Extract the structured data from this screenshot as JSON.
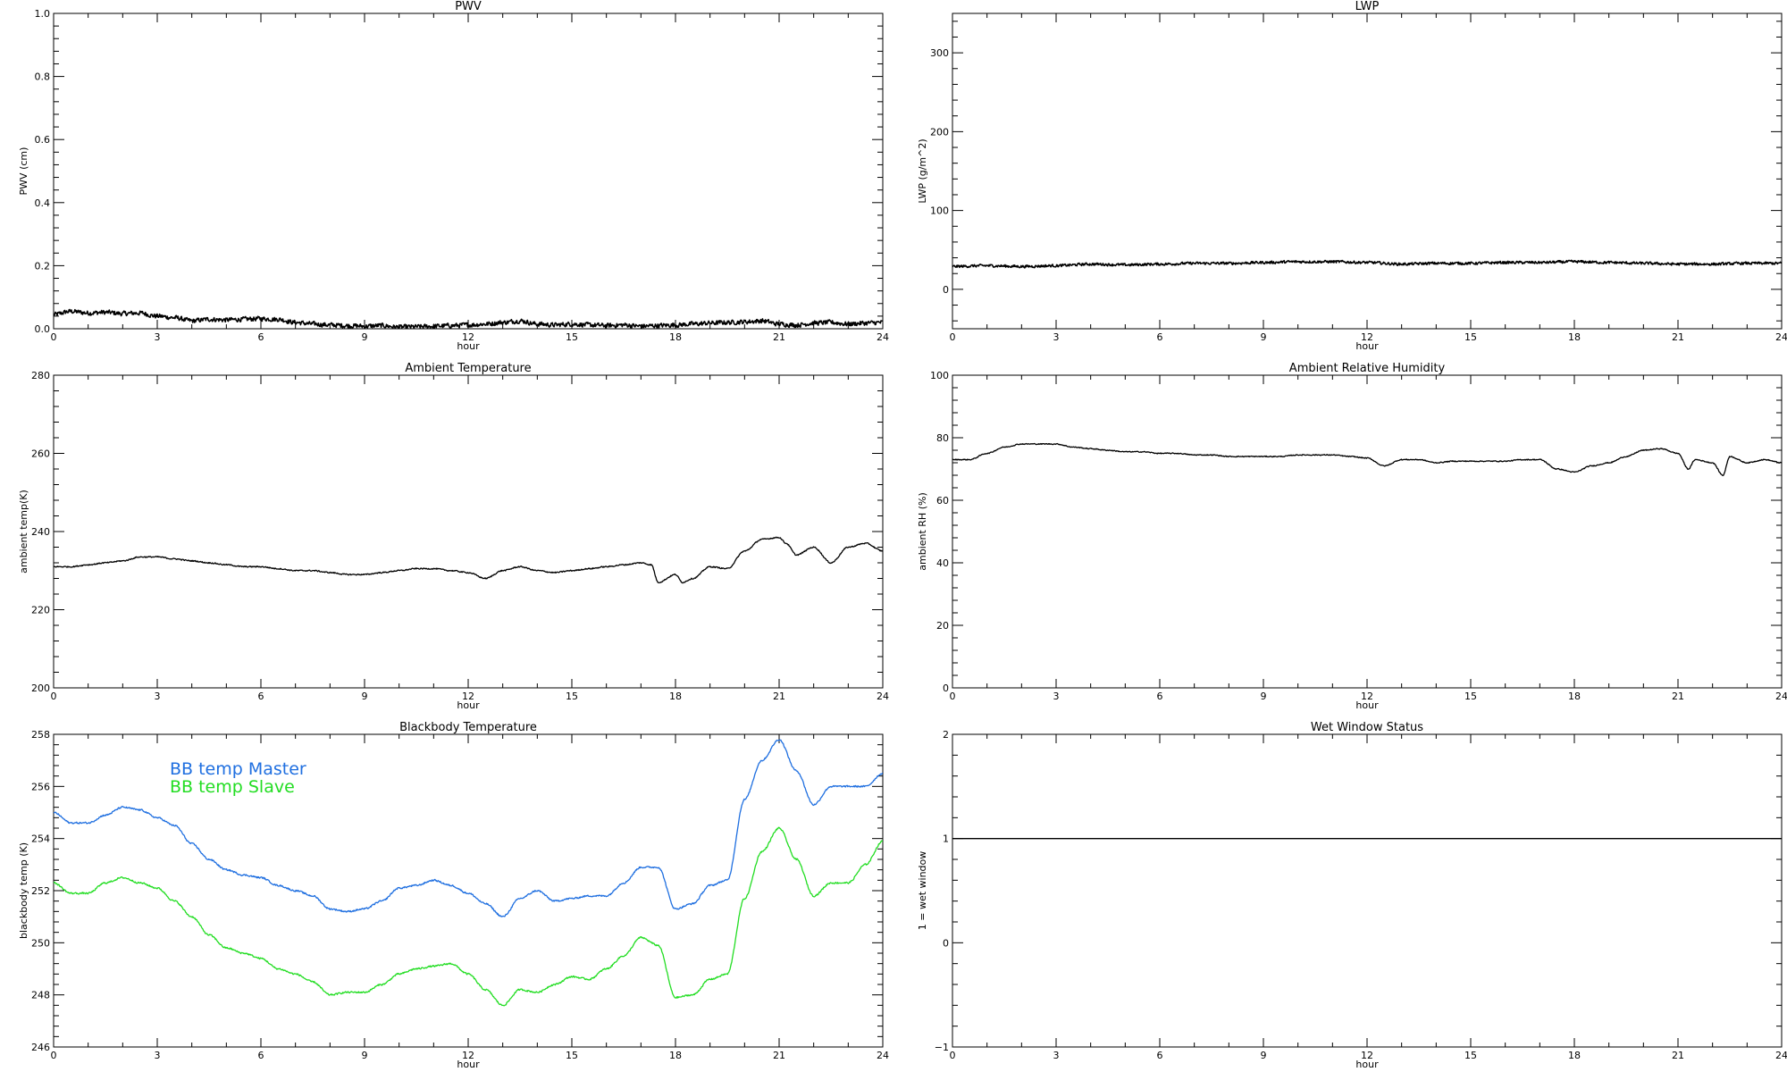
{
  "chart_data": [
    {
      "type": "line",
      "title": "PWV",
      "xlabel": "hour",
      "ylabel": "PWV (cm)",
      "xlim": [
        0,
        24
      ],
      "ylim": [
        0.0,
        1.0
      ],
      "x_ticks": [
        0,
        3,
        6,
        9,
        12,
        15,
        18,
        21,
        24
      ],
      "y_ticks": [
        0.0,
        0.2,
        0.4,
        0.6,
        0.8,
        1.0
      ],
      "y_tick_labels": [
        "0.0",
        "0.2",
        "0.4",
        "0.6",
        "0.8",
        "1.0"
      ],
      "noise": 0.007,
      "series": [
        {
          "color": "#000000",
          "x": [
            0,
            0.5,
            1,
            1.5,
            2,
            2.5,
            3,
            3.5,
            4,
            4.5,
            5,
            5.5,
            6,
            6.5,
            7,
            7.5,
            8,
            8.5,
            9,
            9.5,
            10,
            10.5,
            11,
            11.5,
            12,
            12.5,
            13,
            13.5,
            14,
            14.5,
            15,
            15.5,
            16,
            16.5,
            17,
            17.5,
            18,
            18.5,
            19,
            19.5,
            20,
            20.5,
            21,
            21.5,
            22,
            22.5,
            23,
            23.5,
            24
          ],
          "y": [
            0.045,
            0.055,
            0.05,
            0.052,
            0.048,
            0.05,
            0.04,
            0.035,
            0.025,
            0.03,
            0.028,
            0.03,
            0.032,
            0.03,
            0.02,
            0.015,
            0.012,
            0.01,
            0.008,
            0.01,
            0.005,
            0.006,
            0.008,
            0.01,
            0.012,
            0.015,
            0.02,
            0.025,
            0.015,
            0.012,
            0.015,
            0.012,
            0.01,
            0.012,
            0.008,
            0.01,
            0.012,
            0.015,
            0.018,
            0.02,
            0.022,
            0.025,
            0.015,
            0.012,
            0.018,
            0.02,
            0.015,
            0.018,
            0.02
          ]
        }
      ]
    },
    {
      "type": "line",
      "title": "LWP",
      "xlabel": "hour",
      "ylabel": "LWP (g/m^2)",
      "xlim": [
        0,
        24
      ],
      "ylim": [
        -50,
        350
      ],
      "x_ticks": [
        0,
        3,
        6,
        9,
        12,
        15,
        18,
        21,
        24
      ],
      "y_ticks": [
        0,
        100,
        200,
        300
      ],
      "y_tick_labels": [
        "0",
        "100",
        "200",
        "300"
      ],
      "noise": 1.6,
      "series": [
        {
          "color": "#000000",
          "x": [
            0,
            1,
            2,
            3,
            4,
            5,
            6,
            7,
            8,
            9,
            10,
            11,
            12,
            13,
            14,
            15,
            16,
            17,
            18,
            19,
            20,
            21,
            22,
            23,
            24
          ],
          "y": [
            29,
            30,
            29,
            30,
            32,
            31,
            32,
            33,
            33,
            34,
            35,
            35,
            34,
            32,
            33,
            33,
            34,
            34,
            35,
            34,
            33,
            32,
            32,
            33,
            33
          ]
        }
      ]
    },
    {
      "type": "line",
      "title": "Ambient Temperature",
      "xlabel": "hour",
      "ylabel": "ambient temp(K)",
      "xlim": [
        0,
        24
      ],
      "ylim": [
        200,
        280
      ],
      "x_ticks": [
        0,
        3,
        6,
        9,
        12,
        15,
        18,
        21,
        24
      ],
      "y_ticks": [
        200,
        220,
        240,
        260,
        280
      ],
      "y_tick_labels": [
        "200",
        "220",
        "240",
        "260",
        "280"
      ],
      "noise": 0.15,
      "series": [
        {
          "color": "#000000",
          "x": [
            0,
            0.5,
            1,
            1.5,
            2,
            2.5,
            3,
            3.5,
            4,
            4.5,
            5,
            5.5,
            6,
            6.5,
            7,
            7.5,
            8,
            8.5,
            9,
            9.5,
            10,
            10.5,
            11,
            11.5,
            12,
            12.5,
            13,
            13.5,
            14,
            14.5,
            15,
            15.5,
            16,
            16.5,
            17,
            17.3,
            17.5,
            18,
            18.2,
            18.5,
            19,
            19.5,
            20,
            20.5,
            21,
            21.2,
            21.5,
            22,
            22.5,
            23,
            23.5,
            24
          ],
          "y": [
            231,
            231,
            231.5,
            232,
            232.5,
            233.5,
            233.5,
            233,
            232.5,
            232,
            231.5,
            231,
            231,
            230.5,
            230,
            230,
            229.5,
            229,
            229,
            229.5,
            230,
            230.5,
            230.5,
            230,
            229.5,
            228,
            230,
            231,
            230,
            229.5,
            230,
            230.5,
            231,
            231.5,
            232,
            231.5,
            227,
            229,
            227,
            228,
            231,
            230.5,
            235,
            238,
            238.5,
            237,
            234,
            236,
            232,
            236,
            237,
            235
          ]
        }
      ]
    },
    {
      "type": "line",
      "title": "Ambient Relative Humidity",
      "xlabel": "hour",
      "ylabel": "ambient RH (%)",
      "xlim": [
        0,
        24
      ],
      "ylim": [
        0,
        100
      ],
      "x_ticks": [
        0,
        3,
        6,
        9,
        12,
        15,
        18,
        21,
        24
      ],
      "y_ticks": [
        0,
        20,
        40,
        60,
        80,
        100
      ],
      "y_tick_labels": [
        "0",
        "20",
        "40",
        "60",
        "80",
        "100"
      ],
      "noise": 0.15,
      "series": [
        {
          "color": "#000000",
          "x": [
            0,
            0.5,
            1,
            1.5,
            2,
            2.5,
            3,
            3.5,
            4,
            4.5,
            5,
            5.5,
            6,
            6.5,
            7,
            7.5,
            8,
            8.5,
            9,
            9.5,
            10,
            10.5,
            11,
            11.5,
            12,
            12.5,
            13,
            13.5,
            14,
            14.5,
            15,
            15.5,
            16,
            16.5,
            17,
            17.5,
            18,
            18.5,
            19,
            19.5,
            20,
            20.5,
            21,
            21.3,
            21.5,
            22,
            22.3,
            22.5,
            23,
            23.5,
            24
          ],
          "y": [
            73,
            73,
            75,
            77,
            78,
            78,
            78,
            77,
            76.5,
            76,
            75.5,
            75.5,
            75,
            75,
            74.5,
            74.5,
            74,
            74,
            74,
            74,
            74.5,
            74.5,
            74.5,
            74,
            73.5,
            71,
            73,
            73,
            72,
            72.5,
            72.5,
            72.5,
            72.5,
            73,
            73,
            70,
            69,
            71,
            72,
            74,
            76,
            76.5,
            75,
            70,
            73,
            72,
            68,
            74,
            72,
            73,
            72
          ]
        }
      ]
    },
    {
      "type": "line",
      "title": "Blackbody Temperature",
      "xlabel": "hour",
      "ylabel": "blackbody temp (K)",
      "xlim": [
        0,
        24
      ],
      "ylim": [
        246,
        258
      ],
      "x_ticks": [
        0,
        3,
        6,
        9,
        12,
        15,
        18,
        21,
        24
      ],
      "y_ticks": [
        246,
        248,
        250,
        252,
        254,
        256,
        258
      ],
      "y_tick_labels": [
        "246",
        "248",
        "250",
        "252",
        "254",
        "256",
        "258"
      ],
      "noise": 0.03,
      "series": [
        {
          "name": "BB temp Master",
          "color": "#1f6fe0",
          "x": [
            0,
            0.5,
            1,
            1.5,
            2,
            2.5,
            3,
            3.5,
            4,
            4.5,
            5,
            5.5,
            6,
            6.5,
            7,
            7.5,
            8,
            8.5,
            9,
            9.5,
            10,
            10.5,
            11,
            11.5,
            12,
            12.5,
            13,
            13.5,
            14,
            14.5,
            15,
            15.5,
            16,
            16.5,
            17,
            17.5,
            18,
            18.5,
            19,
            19.5,
            20,
            20.5,
            21,
            21.5,
            22,
            22.5,
            23,
            23.5,
            24
          ],
          "y": [
            255,
            254.6,
            254.6,
            254.9,
            255.2,
            255.1,
            254.8,
            254.5,
            253.8,
            253.2,
            252.8,
            252.6,
            252.5,
            252.2,
            252,
            251.8,
            251.3,
            251.2,
            251.3,
            251.6,
            252.1,
            252.2,
            252.4,
            252.2,
            251.9,
            251.5,
            251,
            251.7,
            252,
            251.6,
            251.7,
            251.8,
            251.8,
            252.3,
            252.9,
            252.9,
            251.3,
            251.5,
            252.2,
            252.4,
            255.5,
            257,
            257.8,
            256.6,
            255.3,
            256,
            256,
            256,
            256.5
          ]
        },
        {
          "name": "BB temp Slave",
          "color": "#22dd22",
          "x": [
            0,
            0.5,
            1,
            1.5,
            2,
            2.5,
            3,
            3.5,
            4,
            4.5,
            5,
            5.5,
            6,
            6.5,
            7,
            7.5,
            8,
            8.5,
            9,
            9.5,
            10,
            10.5,
            11,
            11.5,
            12,
            12.5,
            13,
            13.5,
            14,
            14.5,
            15,
            15.5,
            16,
            16.5,
            17,
            17.5,
            18,
            18.5,
            19,
            19.5,
            20,
            20.5,
            21,
            21.5,
            22,
            22.5,
            23,
            23.5,
            24
          ],
          "y": [
            252.3,
            251.9,
            251.9,
            252.3,
            252.5,
            252.3,
            252.1,
            251.6,
            251,
            250.3,
            249.8,
            249.6,
            249.4,
            249,
            248.8,
            248.5,
            248,
            248.1,
            248.1,
            248.4,
            248.8,
            249,
            249.1,
            249.2,
            248.8,
            248.2,
            247.6,
            248.2,
            248.1,
            248.4,
            248.7,
            248.6,
            249,
            249.5,
            250.2,
            249.9,
            247.9,
            248,
            248.6,
            248.8,
            251.7,
            253.5,
            254.4,
            253.2,
            251.8,
            252.3,
            252.3,
            253,
            253.9
          ]
        }
      ],
      "legend": "upper-left"
    },
    {
      "type": "line",
      "title": "Wet Window Status",
      "xlabel": "hour",
      "ylabel": "1 = wet window",
      "xlim": [
        0,
        24
      ],
      "ylim": [
        -1,
        2
      ],
      "x_ticks": [
        0,
        3,
        6,
        9,
        12,
        15,
        18,
        21,
        24
      ],
      "y_ticks": [
        -1,
        0,
        1,
        2
      ],
      "y_tick_labels": [
        "−1",
        "0",
        "1",
        "2"
      ],
      "noise": 0,
      "series": [
        {
          "color": "#000000",
          "x": [
            0,
            24
          ],
          "y": [
            1,
            1
          ]
        }
      ]
    }
  ]
}
